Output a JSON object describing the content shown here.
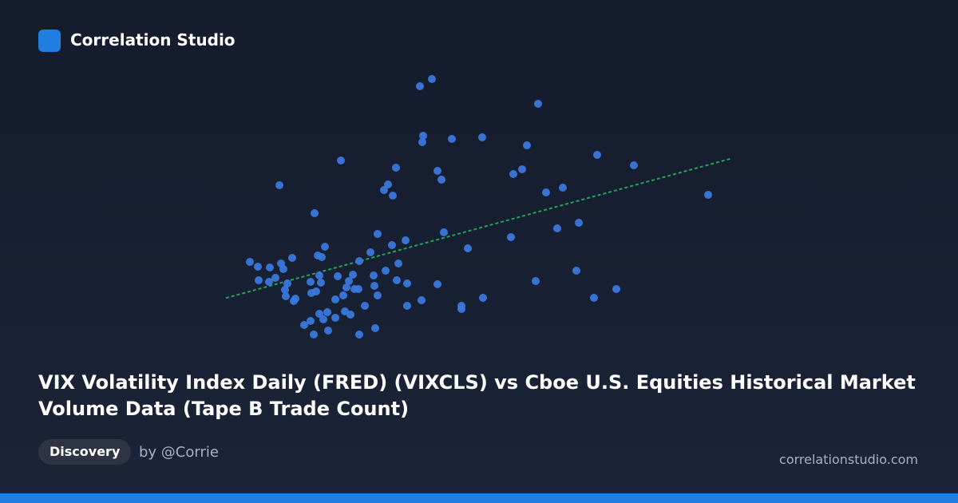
{
  "header": {
    "brand": "Correlation Studio"
  },
  "chart_data": {
    "type": "scatter",
    "color": "#3a78dc",
    "trendline": {
      "color": "#22a55a"
    },
    "x": [
      313,
      323,
      338,
      352,
      355,
      324,
      337,
      345,
      360,
      357,
      358,
      366,
      350,
      394,
      427,
      370,
      368,
      389,
      390,
      396,
      398,
      403,
      407,
      400,
      402,
      381,
      389,
      393,
      400,
      405,
      410,
      411,
      420,
      420,
      423,
      430,
      432,
      434,
      437,
      439,
      442,
      444,
      449,
      450,
      450,
      457,
      464,
      468,
      469,
      473,
      470,
      473,
      483,
      481,
      486,
      492,
      496,
      491,
      499,
      497,
      508,
      510,
      510,
      526,
      541,
      530,
      529,
      528,
      548,
      553,
      556,
      548,
      566,
      578,
      578,
      586,
      604,
      605,
      643,
      654,
      660,
      674,
      640,
      671,
      684,
      705,
      698,
      725,
      722,
      748,
      744,
      772,
      794,
      887
    ],
    "values": [
      102,
      96,
      95,
      100,
      93,
      79,
      77,
      82,
      75,
      67,
      59,
      107,
      198,
      163,
      229,
      56,
      53,
      77,
      63,
      65,
      110,
      108,
      121,
      85,
      76,
      23,
      28,
      11,
      37,
      30,
      39,
      16,
      55,
      32,
      84,
      60,
      40,
      70,
      78,
      36,
      86,
      68,
      68,
      103,
      11,
      47,
      114,
      85,
      72,
      60,
      19,
      137,
      91,
      192,
      199,
      185,
      220,
      123,
      100,
      79,
      129,
      75,
      47,
      322,
      331,
      260,
      252,
      54,
      216,
      205,
      139,
      74,
      256,
      47,
      43,
      119,
      258,
      57,
      212,
      218,
      248,
      300,
      133,
      78,
      189,
      195,
      144,
      151,
      91,
      236,
      57,
      68,
      223,
      186
    ]
  },
  "title": "VIX Volatility Index Daily (FRED) (VIXCLS) vs Cboe U.S. Equities Historical Market Volume Data (Tape B Trade Count)",
  "tag": "Discovery",
  "author": "by @Corrie",
  "site": "correlationstudio.com"
}
